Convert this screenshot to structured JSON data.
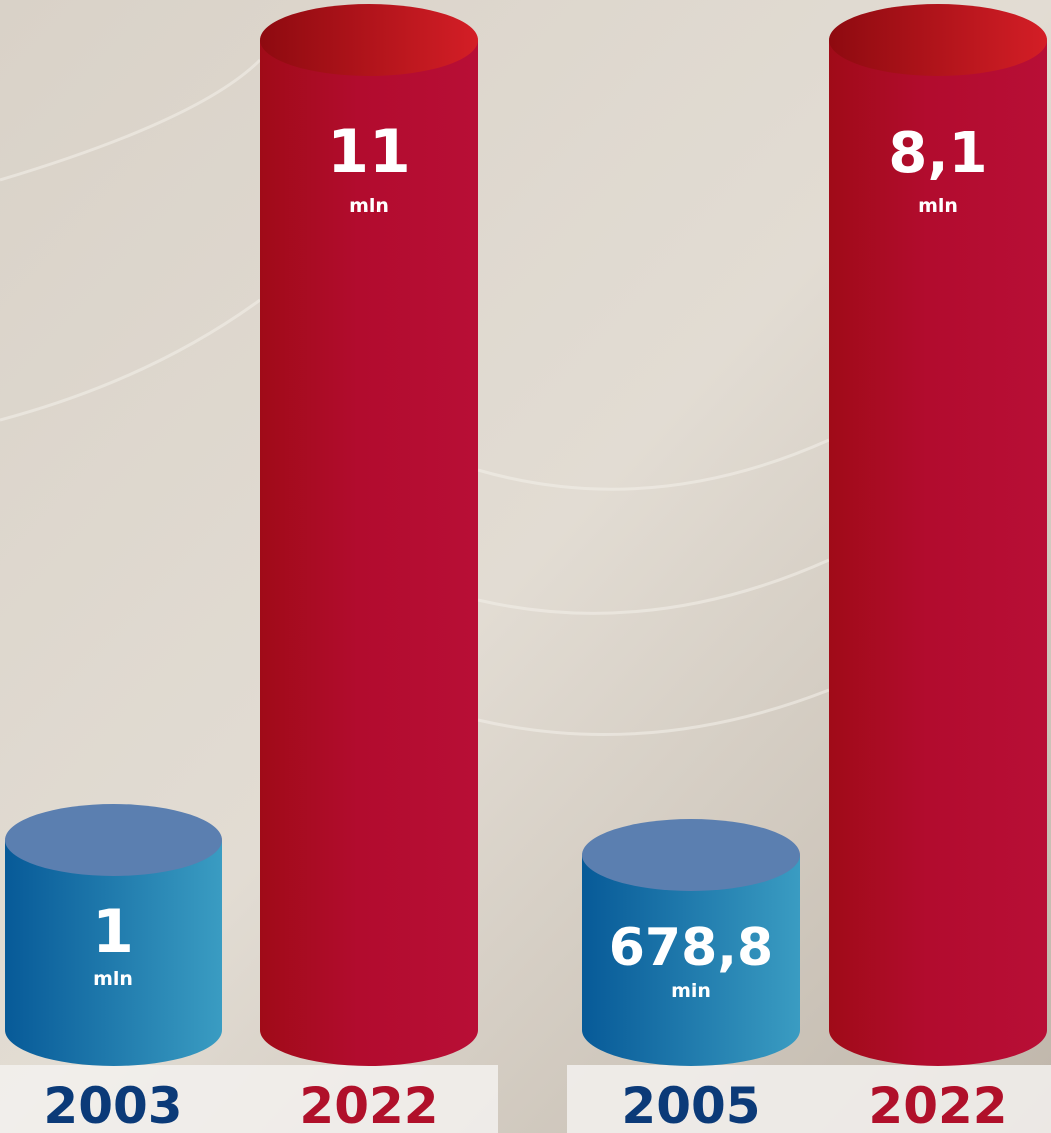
{
  "groups": [
    {
      "items": [
        {
          "value": "1",
          "unit": "mln",
          "year": "2003"
        },
        {
          "value": "11",
          "unit": "mln",
          "year": "2022"
        }
      ]
    },
    {
      "items": [
        {
          "value": "678,8",
          "unit": "min",
          "year": "2005"
        },
        {
          "value": "8,1",
          "unit": "mln",
          "year": "2022"
        }
      ]
    }
  ]
}
